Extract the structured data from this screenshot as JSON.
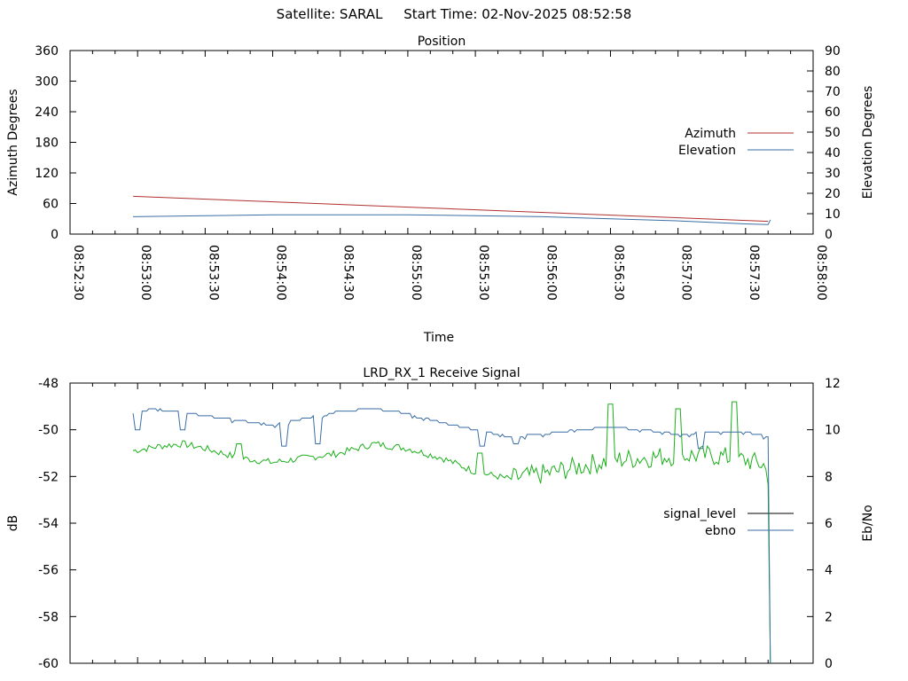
{
  "header": {
    "satellite_label": "Satellite: SARAL",
    "start_time_label": "Start Time: 02-Nov-2025 08:52:58"
  },
  "chart_data": [
    {
      "type": "line",
      "title": "Position",
      "xlabel": "Time",
      "ylabel": "Azimuth Degrees",
      "y2label": "Elevation Degrees",
      "xlim": [
        "08:52:30",
        "08:58:00"
      ],
      "x_ticks": [
        "08:52:30",
        "08:53:00",
        "08:53:30",
        "08:54:00",
        "08:54:30",
        "08:55:00",
        "08:55:30",
        "08:56:00",
        "08:56:30",
        "08:57:00",
        "08:57:30",
        "08:58:00"
      ],
      "ylim": [
        0,
        360
      ],
      "y_ticks": [
        0,
        60,
        120,
        180,
        240,
        300,
        360
      ],
      "y2lim": [
        0,
        90
      ],
      "y2_ticks": [
        0,
        10,
        20,
        30,
        40,
        50,
        60,
        70,
        80,
        90
      ],
      "grid": false,
      "legend_position": "right",
      "series": [
        {
          "name": "Azimuth",
          "axis": "y",
          "color": "#b03030",
          "x": [
            "08:52:58",
            "08:57:40"
          ],
          "values": [
            74,
            25
          ]
        },
        {
          "name": "Elevation",
          "axis": "y2",
          "color": "#3a6ea5",
          "x": [
            "08:52:58",
            "08:53:30",
            "08:54:00",
            "08:54:30",
            "08:55:00",
            "08:55:30",
            "08:56:00",
            "08:56:30",
            "08:57:00",
            "08:57:30",
            "08:57:40",
            "08:57:41"
          ],
          "values": [
            8.5,
            9,
            9.5,
            9.5,
            9.5,
            9,
            8.5,
            7.5,
            6.5,
            5,
            4.7,
            7
          ]
        }
      ]
    },
    {
      "type": "line",
      "title": "LRD_RX_1 Receive Signal",
      "ylabel": "dB",
      "y2label": "Eb/No",
      "ylim": [
        -60,
        -48
      ],
      "y_ticks": [
        -60,
        -58,
        -56,
        -54,
        -52,
        -50,
        -48
      ],
      "y2lim": [
        0,
        12
      ],
      "y2_ticks": [
        0,
        2,
        4,
        6,
        8,
        10,
        12
      ],
      "grid": false,
      "legend_position": "right",
      "series": [
        {
          "name": "signal_level",
          "axis": "y",
          "color": "#1aaf1a",
          "x": [
            "08:52:58",
            "08:53:10",
            "08:53:20",
            "08:53:30",
            "08:53:45",
            "08:54:00",
            "08:54:15",
            "08:54:30",
            "08:54:45",
            "08:55:00",
            "08:55:15",
            "08:55:30",
            "08:55:45",
            "08:56:00",
            "08:56:15",
            "08:56:30",
            "08:56:45",
            "08:57:00",
            "08:57:15",
            "08:57:30",
            "08:57:38",
            "08:57:40",
            "08:57:41"
          ],
          "values": [
            -50.9,
            -50.7,
            -50.6,
            -50.8,
            -51.2,
            -51.4,
            -51.2,
            -51.0,
            -50.6,
            -50.8,
            -51.2,
            -51.8,
            -52.1,
            -51.9,
            -51.6,
            -51.3,
            -51.2,
            -51.1,
            -51.1,
            -51.3,
            -51.5,
            -52.0,
            -60.0
          ],
          "spikes": [
            {
              "x": "08:53:45",
              "value": -50.6
            },
            {
              "x": "08:55:32",
              "value": -51.0
            },
            {
              "x": "08:56:30",
              "value": -48.9
            },
            {
              "x": "08:57:00",
              "value": -49.1
            },
            {
              "x": "08:57:25",
              "value": -48.8
            }
          ]
        },
        {
          "name": "ebno",
          "axis": "y2",
          "color": "#3a6ea5",
          "x": [
            "08:52:58",
            "08:53:05",
            "08:53:15",
            "08:53:30",
            "08:53:45",
            "08:54:00",
            "08:54:15",
            "08:54:30",
            "08:54:45",
            "08:55:00",
            "08:55:15",
            "08:55:30",
            "08:55:45",
            "08:56:00",
            "08:56:15",
            "08:56:30",
            "08:56:45",
            "08:57:00",
            "08:57:15",
            "08:57:30",
            "08:57:40",
            "08:57:41"
          ],
          "values": [
            10.7,
            10.9,
            10.8,
            10.6,
            10.4,
            10.2,
            10.5,
            10.8,
            10.9,
            10.7,
            10.3,
            10.0,
            9.7,
            9.8,
            10.0,
            10.1,
            10.0,
            9.8,
            9.9,
            9.9,
            9.7,
            0.0
          ],
          "dips": [
            {
              "x": "08:53:00",
              "value": 10.0
            },
            {
              "x": "08:53:20",
              "value": 10.0
            },
            {
              "x": "08:54:05",
              "value": 9.3
            },
            {
              "x": "08:54:20",
              "value": 9.4
            },
            {
              "x": "08:55:33",
              "value": 9.3
            },
            {
              "x": "08:55:48",
              "value": 9.4
            },
            {
              "x": "08:57:10",
              "value": 9.2
            }
          ]
        }
      ]
    }
  ]
}
